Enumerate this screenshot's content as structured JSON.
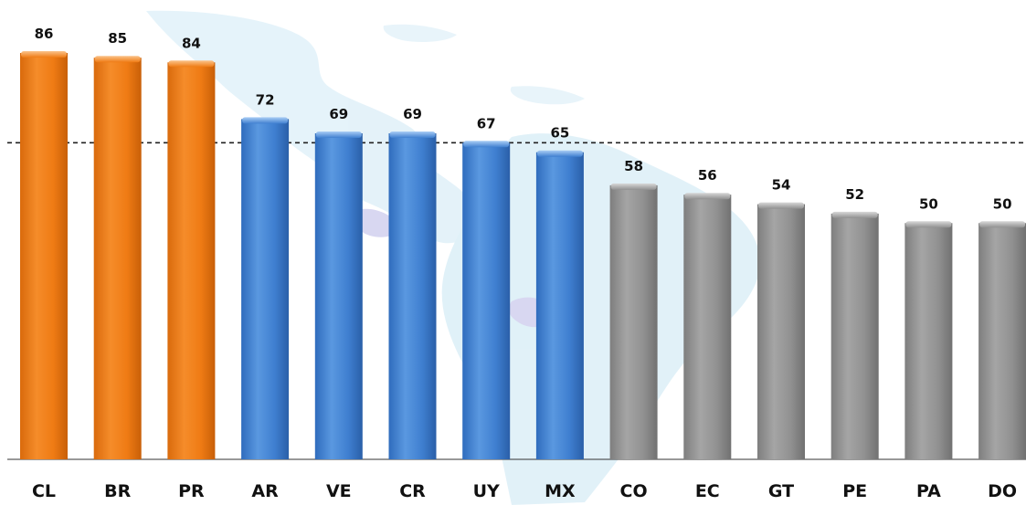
{
  "chart_data": {
    "type": "bar",
    "title": "",
    "xlabel": "",
    "ylabel": "",
    "categories": [
      "CL",
      "BR",
      "PR",
      "AR",
      "VE",
      "CR",
      "UY",
      "MX",
      "CO",
      "EC",
      "GT",
      "PE",
      "PA",
      "DO"
    ],
    "values": [
      86,
      85,
      84,
      72,
      69,
      69,
      67,
      65,
      58,
      56,
      54,
      52,
      50,
      50
    ],
    "groups": [
      "high",
      "high",
      "high",
      "mid",
      "mid",
      "mid",
      "mid",
      "mid",
      "low",
      "low",
      "low",
      "low",
      "low",
      "low"
    ],
    "colors": {
      "high": "#ee7a12",
      "mid": "#3f7fd0",
      "low": "#8f8f8f"
    },
    "reference_line": 67,
    "ylim": [
      0,
      86
    ],
    "grid": false,
    "legend": "none",
    "background": "map of Latin America (light blue)"
  }
}
